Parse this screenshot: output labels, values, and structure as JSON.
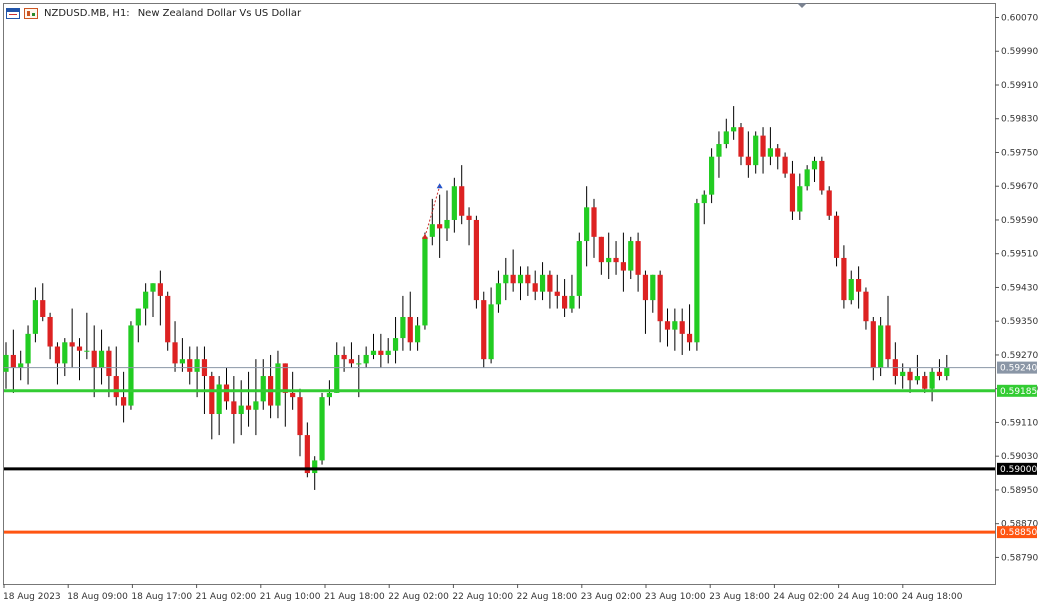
{
  "header": {
    "symbol": "NZDUSD.MB, H1:",
    "description": "New Zealand Dollar Vs US Dollar",
    "icon_left": "chart-window-icon",
    "icon_right": "indicators-icon"
  },
  "chart_data": {
    "type": "candlestick",
    "title": "NZDUSD.MB, H1:  New Zealand Dollar Vs US Dollar",
    "ylim": [
      0.58727,
      0.60102
    ],
    "yticks": [
      "0.60070",
      "0.59990",
      "0.59910",
      "0.59830",
      "0.59750",
      "0.59670",
      "0.59590",
      "0.59510",
      "0.59430",
      "0.59350",
      "0.59270",
      "0.59190",
      "0.59110",
      "0.59030",
      "0.58950",
      "0.58870",
      "0.58790"
    ],
    "xticks": [
      "18 Aug 2023",
      "18 Aug 09:00",
      "18 Aug 17:00",
      "21 Aug 02:00",
      "21 Aug 10:00",
      "21 Aug 18:00",
      "22 Aug 02:00",
      "22 Aug 10:00",
      "22 Aug 18:00",
      "23 Aug 02:00",
      "23 Aug 10:00",
      "23 Aug 18:00",
      "24 Aug 02:00",
      "24 Aug 10:00",
      "24 Aug 18:00"
    ],
    "up_color": "#22cc22",
    "down_color": "#dd2222",
    "candles": [
      [
        0.5923,
        0.593,
        0.5919,
        0.5927
      ],
      [
        0.5927,
        0.5933,
        0.5918,
        0.5924
      ],
      [
        0.5924,
        0.5928,
        0.5921,
        0.5925
      ],
      [
        0.5925,
        0.5934,
        0.592,
        0.5932
      ],
      [
        0.5932,
        0.5943,
        0.593,
        0.594
      ],
      [
        0.594,
        0.5944,
        0.5935,
        0.5936
      ],
      [
        0.5936,
        0.5937,
        0.5926,
        0.5929
      ],
      [
        0.5929,
        0.593,
        0.592,
        0.5925
      ],
      [
        0.5925,
        0.5931,
        0.5922,
        0.593
      ],
      [
        0.593,
        0.5938,
        0.5924,
        0.5929
      ],
      [
        0.5929,
        0.5931,
        0.5921,
        0.5928
      ],
      [
        0.5928,
        0.5937,
        0.5926,
        0.5928
      ],
      [
        0.5928,
        0.5934,
        0.5917,
        0.5924
      ],
      [
        0.5924,
        0.5933,
        0.592,
        0.5928
      ],
      [
        0.5928,
        0.5929,
        0.5917,
        0.5922
      ],
      [
        0.5922,
        0.5929,
        0.5915,
        0.5917
      ],
      [
        0.5917,
        0.5923,
        0.5911,
        0.5915
      ],
      [
        0.5915,
        0.5935,
        0.5914,
        0.5934
      ],
      [
        0.5934,
        0.5938,
        0.593,
        0.5938
      ],
      [
        0.5938,
        0.5944,
        0.5934,
        0.5942
      ],
      [
        0.5942,
        0.5944,
        0.5936,
        0.5944
      ],
      [
        0.5944,
        0.5947,
        0.5934,
        0.5941
      ],
      [
        0.5941,
        0.5942,
        0.5928,
        0.593
      ],
      [
        0.593,
        0.5935,
        0.5923,
        0.5925
      ],
      [
        0.5925,
        0.5931,
        0.5923,
        0.5926
      ],
      [
        0.5926,
        0.5929,
        0.592,
        0.5923
      ],
      [
        0.5923,
        0.5929,
        0.5917,
        0.5926
      ],
      [
        0.5926,
        0.5929,
        0.5913,
        0.5922
      ],
      [
        0.5922,
        0.5923,
        0.5907,
        0.5913
      ],
      [
        0.5913,
        0.5922,
        0.5908,
        0.592
      ],
      [
        0.592,
        0.5924,
        0.5914,
        0.5916
      ],
      [
        0.5916,
        0.5922,
        0.5906,
        0.5913
      ],
      [
        0.5913,
        0.5921,
        0.5908,
        0.5915
      ],
      [
        0.5915,
        0.5923,
        0.591,
        0.5914
      ],
      [
        0.5914,
        0.5926,
        0.5908,
        0.5916
      ],
      [
        0.5916,
        0.5926,
        0.5914,
        0.5922
      ],
      [
        0.5922,
        0.5927,
        0.5912,
        0.5915
      ],
      [
        0.5915,
        0.5928,
        0.5912,
        0.5925
      ],
      [
        0.5925,
        0.5925,
        0.591,
        0.5918
      ],
      [
        0.5918,
        0.5923,
        0.5914,
        0.5917
      ],
      [
        0.5917,
        0.5919,
        0.5903,
        0.5908
      ],
      [
        0.5908,
        0.5911,
        0.5898,
        0.5899
      ],
      [
        0.5899,
        0.5903,
        0.5895,
        0.5902
      ],
      [
        0.5902,
        0.5918,
        0.5901,
        0.5917
      ],
      [
        0.5917,
        0.5921,
        0.5915,
        0.5918
      ],
      [
        0.5918,
        0.593,
        0.5918,
        0.5927
      ],
      [
        0.5927,
        0.5929,
        0.5923,
        0.5926
      ],
      [
        0.5926,
        0.593,
        0.5924,
        0.5925
      ],
      [
        0.5925,
        0.5927,
        0.5917,
        0.5925
      ],
      [
        0.5925,
        0.5929,
        0.5924,
        0.5927
      ],
      [
        0.5927,
        0.5932,
        0.5926,
        0.5928
      ],
      [
        0.5928,
        0.5932,
        0.5924,
        0.5927
      ],
      [
        0.5927,
        0.5931,
        0.5925,
        0.5928
      ],
      [
        0.5928,
        0.5936,
        0.5925,
        0.5931
      ],
      [
        0.5931,
        0.5941,
        0.5928,
        0.5936
      ],
      [
        0.5936,
        0.5942,
        0.5928,
        0.593
      ],
      [
        0.593,
        0.5936,
        0.5928,
        0.5934
      ],
      [
        0.5934,
        0.5956,
        0.5933,
        0.5955
      ],
      [
        0.5955,
        0.5964,
        0.5953,
        0.5958
      ],
      [
        0.5958,
        0.5965,
        0.595,
        0.5957
      ],
      [
        0.5957,
        0.5966,
        0.5954,
        0.5959
      ],
      [
        0.5959,
        0.5969,
        0.5956,
        0.5967
      ],
      [
        0.5967,
        0.5972,
        0.5958,
        0.596
      ],
      [
        0.596,
        0.5962,
        0.5953,
        0.5959
      ],
      [
        0.5959,
        0.596,
        0.5938,
        0.594
      ],
      [
        0.594,
        0.5942,
        0.5924,
        0.5926
      ],
      [
        0.5926,
        0.5943,
        0.5925,
        0.5939
      ],
      [
        0.5939,
        0.5947,
        0.5937,
        0.5944
      ],
      [
        0.5944,
        0.595,
        0.594,
        0.5946
      ],
      [
        0.5946,
        0.5952,
        0.5942,
        0.5944
      ],
      [
        0.5944,
        0.5948,
        0.594,
        0.5946
      ],
      [
        0.5946,
        0.5948,
        0.5941,
        0.5944
      ],
      [
        0.5944,
        0.5947,
        0.594,
        0.5942
      ],
      [
        0.5942,
        0.5949,
        0.594,
        0.5946
      ],
      [
        0.5946,
        0.5947,
        0.5938,
        0.5942
      ],
      [
        0.5942,
        0.5946,
        0.5938,
        0.5941
      ],
      [
        0.5941,
        0.5945,
        0.5936,
        0.5938
      ],
      [
        0.5938,
        0.5946,
        0.5937,
        0.5941
      ],
      [
        0.5941,
        0.5956,
        0.5938,
        0.5954
      ],
      [
        0.5954,
        0.5967,
        0.5948,
        0.5962
      ],
      [
        0.5962,
        0.5964,
        0.595,
        0.5955
      ],
      [
        0.5955,
        0.5955,
        0.5946,
        0.5949
      ],
      [
        0.5949,
        0.5956,
        0.5945,
        0.595
      ],
      [
        0.595,
        0.5954,
        0.5946,
        0.5949
      ],
      [
        0.5949,
        0.5956,
        0.5942,
        0.5947
      ],
      [
        0.5947,
        0.5955,
        0.5945,
        0.5954
      ],
      [
        0.5954,
        0.5956,
        0.5942,
        0.5946
      ],
      [
        0.5946,
        0.5947,
        0.5932,
        0.594
      ],
      [
        0.594,
        0.5946,
        0.5937,
        0.5946
      ],
      [
        0.5946,
        0.5947,
        0.593,
        0.5935
      ],
      [
        0.5935,
        0.5938,
        0.5929,
        0.5933
      ],
      [
        0.5933,
        0.5938,
        0.5928,
        0.5935
      ],
      [
        0.5935,
        0.5938,
        0.5927,
        0.5932
      ],
      [
        0.5932,
        0.5939,
        0.5928,
        0.593
      ],
      [
        0.593,
        0.5964,
        0.5928,
        0.5963
      ],
      [
        0.5963,
        0.5966,
        0.5958,
        0.5965
      ],
      [
        0.5965,
        0.5976,
        0.5963,
        0.5974
      ],
      [
        0.5974,
        0.598,
        0.5969,
        0.5977
      ],
      [
        0.5977,
        0.5983,
        0.5976,
        0.598
      ],
      [
        0.598,
        0.5986,
        0.5978,
        0.5981
      ],
      [
        0.5981,
        0.5982,
        0.5972,
        0.5974
      ],
      [
        0.5974,
        0.598,
        0.5969,
        0.5972
      ],
      [
        0.5972,
        0.598,
        0.597,
        0.5979
      ],
      [
        0.5979,
        0.5981,
        0.597,
        0.5974
      ],
      [
        0.5974,
        0.5981,
        0.5972,
        0.5976
      ],
      [
        0.5976,
        0.5977,
        0.5971,
        0.5974
      ],
      [
        0.5974,
        0.5975,
        0.5969,
        0.597
      ],
      [
        0.597,
        0.5973,
        0.5959,
        0.5961
      ],
      [
        0.5961,
        0.597,
        0.5959,
        0.5967
      ],
      [
        0.5967,
        0.5972,
        0.5966,
        0.5971
      ],
      [
        0.5971,
        0.5974,
        0.5968,
        0.5973
      ],
      [
        0.5973,
        0.5974,
        0.5965,
        0.5966
      ],
      [
        0.5966,
        0.5967,
        0.5959,
        0.596
      ],
      [
        0.596,
        0.5961,
        0.5948,
        0.595
      ],
      [
        0.595,
        0.5953,
        0.5938,
        0.594
      ],
      [
        0.594,
        0.5947,
        0.5939,
        0.5945
      ],
      [
        0.5945,
        0.5948,
        0.5938,
        0.5942
      ],
      [
        0.5942,
        0.5943,
        0.5933,
        0.5935
      ],
      [
        0.5935,
        0.5936,
        0.5921,
        0.5924
      ],
      [
        0.5924,
        0.5936,
        0.5922,
        0.5934
      ],
      [
        0.5934,
        0.5941,
        0.5924,
        0.5926
      ],
      [
        0.5926,
        0.593,
        0.592,
        0.5922
      ],
      [
        0.5922,
        0.5925,
        0.5919,
        0.5923
      ],
      [
        0.5923,
        0.5924,
        0.5918,
        0.5921
      ],
      [
        0.5921,
        0.5927,
        0.592,
        0.5922
      ],
      [
        0.5922,
        0.5923,
        0.5918,
        0.5919
      ],
      [
        0.5919,
        0.5924,
        0.5916,
        0.5923
      ],
      [
        0.5923,
        0.5926,
        0.5921,
        0.5922
      ],
      [
        0.5922,
        0.5927,
        0.5921,
        0.5924
      ]
    ],
    "levels": [
      {
        "label": "0.59185",
        "value": 0.59185,
        "color": "#33cc33"
      },
      {
        "label": "0.59000",
        "value": 0.59,
        "color": "#000000"
      },
      {
        "label": "0.58850",
        "value": 0.5885,
        "color": "#ff5511"
      }
    ],
    "current_price": {
      "label": "0.59240",
      "value": 0.5924,
      "color": "#8a96a6"
    },
    "arrows": [
      {
        "index": 57,
        "price": 0.5955,
        "color": "#dd2222"
      },
      {
        "index": 59,
        "price": 0.5967,
        "color": "#2255cc"
      }
    ]
  }
}
